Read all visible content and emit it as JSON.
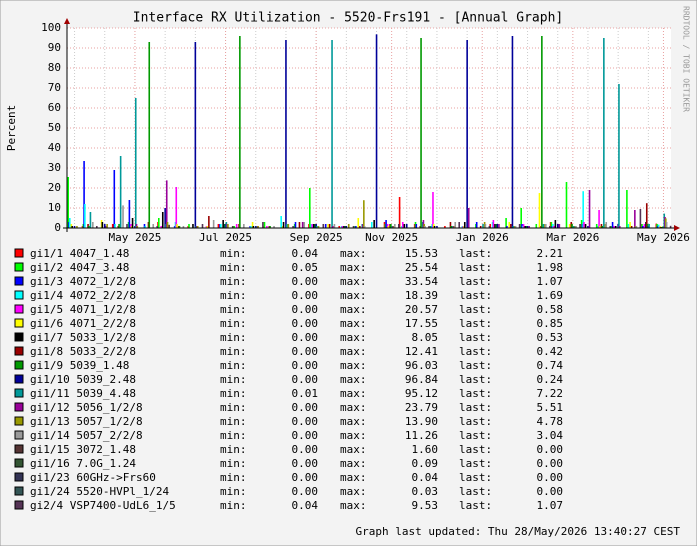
{
  "chart_data": {
    "type": "impulse",
    "title": "Interface RX Utilization - 5520-Frs191 - [Annual Graph]",
    "y_label": "Percent",
    "watermark": "RRDTOOL / TOBI OETIKER",
    "footer": "Graph last updated: Thu 28/May/2026 13:40:27 CEST",
    "stat_labels": {
      "min": "min:",
      "max": "max:",
      "last": "last:"
    },
    "ylim": [
      0,
      100
    ],
    "yticks": [
      0,
      10,
      20,
      30,
      40,
      50,
      60,
      70,
      80,
      90,
      100
    ],
    "grid": true,
    "categories": [
      null,
      null,
      null,
      null,
      "May 2025",
      null,
      null,
      null,
      null,
      null,
      "Jul 2025",
      null,
      null,
      null,
      null,
      null,
      "Sep 2025",
      null,
      null,
      null,
      null,
      "Nov 2025",
      null,
      null,
      null,
      null,
      null,
      "Jan 2026",
      null,
      null,
      null,
      null,
      null,
      "Mar 2026",
      null,
      null,
      null,
      null,
      null,
      "May 2026"
    ],
    "series": [
      {
        "name": "gi1/1 4047_1.48",
        "color": "#ff0000",
        "min": "0.04",
        "max": "15.53",
        "last": "2.21",
        "values": [
          0,
          1,
          0,
          2,
          0,
          0,
          3,
          0,
          1,
          0,
          2,
          0,
          0,
          1,
          0,
          0,
          2,
          0,
          1,
          0,
          0,
          3,
          15.5,
          2,
          0,
          1,
          0,
          0,
          2,
          0,
          1,
          0,
          3,
          0,
          2,
          0,
          1,
          0,
          2,
          2.2
        ]
      },
      {
        "name": "gi1/2 4047_3.48",
        "color": "#00ff00",
        "min": "0.05",
        "max": "25.54",
        "last": "1.98",
        "values": [
          25.5,
          2,
          0,
          0,
          3,
          0,
          5,
          0,
          2,
          0,
          0,
          1,
          0,
          3,
          0,
          2,
          20,
          0,
          0,
          1,
          0,
          2,
          0,
          3,
          1,
          0,
          0,
          2,
          0,
          5,
          10,
          2,
          3,
          23,
          4,
          2,
          1,
          19,
          2,
          2
        ]
      },
      {
        "name": "gi1/3 4072_1/2/8",
        "color": "#0000ff",
        "min": "0.00",
        "max": "33.54",
        "last": "1.07",
        "values": [
          3,
          33.5,
          0,
          29,
          14,
          2,
          0,
          1,
          0,
          0,
          2,
          0,
          1,
          0,
          0,
          3,
          0,
          2,
          0,
          1,
          0,
          4,
          0,
          2,
          1,
          0,
          0,
          3,
          0,
          1,
          2,
          0,
          1,
          0,
          2,
          0,
          3,
          0,
          1,
          1.1
        ]
      },
      {
        "name": "gi1/4 4072_2/2/8",
        "color": "#00ffff",
        "min": "0.00",
        "max": "18.39",
        "last": "1.69",
        "values": [
          5,
          12,
          0,
          2,
          0,
          1,
          0,
          3,
          0,
          0,
          2,
          0,
          1,
          0,
          6,
          0,
          2,
          0,
          1,
          0,
          3,
          0,
          1,
          0,
          2,
          0,
          1,
          0,
          3,
          0,
          1,
          0,
          2,
          0,
          18.4,
          1,
          0,
          2,
          0,
          1.7
        ]
      },
      {
        "name": "gi1/5 4071_1/2/8",
        "color": "#ff00ff",
        "min": "0.00",
        "max": "20.57",
        "last": "0.58",
        "values": [
          0,
          0,
          0,
          0,
          2,
          0,
          1,
          20.5,
          0,
          1,
          0,
          2,
          0,
          1,
          0,
          0,
          2,
          0,
          1,
          0,
          0,
          2,
          3,
          0,
          18,
          0,
          1,
          0,
          4,
          0,
          2,
          0,
          1,
          0,
          3,
          9,
          1,
          0,
          2,
          0.6
        ]
      },
      {
        "name": "gi1/6 4071_2/2/8",
        "color": "#ffff00",
        "min": "0.00",
        "max": "17.55",
        "last": "0.85",
        "values": [
          2,
          0,
          4,
          0,
          1,
          0,
          0,
          2,
          0,
          1,
          0,
          0,
          3,
          0,
          1,
          0,
          0,
          2,
          0,
          5,
          0,
          1,
          0,
          0,
          2,
          0,
          1,
          0,
          0,
          3,
          0,
          17.5,
          0,
          2,
          0,
          1,
          0,
          3,
          0,
          0.9
        ]
      },
      {
        "name": "gi1/7 5033_1/2/8",
        "color": "#000000",
        "min": "0.00",
        "max": "8.05",
        "last": "0.53",
        "values": [
          1,
          0,
          3,
          0,
          5,
          0,
          8,
          0,
          2,
          0,
          4,
          0,
          1,
          0,
          3,
          0,
          2,
          0,
          1,
          0,
          4,
          0,
          2,
          0,
          1,
          0,
          3,
          0,
          2,
          0,
          1,
          0,
          4,
          0,
          2,
          0,
          1,
          0,
          3,
          0.5
        ]
      },
      {
        "name": "gi1/8 5033_2/2/8",
        "color": "#990000",
        "min": "0.00",
        "max": "12.41",
        "last": "0.42",
        "values": [
          0,
          2,
          0,
          1,
          0,
          3,
          0,
          1,
          0,
          6,
          0,
          2,
          0,
          1,
          0,
          3,
          0,
          2,
          0,
          1,
          0,
          2,
          0,
          1,
          0,
          3,
          0,
          1,
          0,
          2,
          0,
          1,
          0,
          3,
          0,
          2,
          0,
          1,
          12.4,
          0.4
        ]
      },
      {
        "name": "gi1/9 5039_1.48",
        "color": "#009900",
        "min": "0.00",
        "max": "96.03",
        "last": "0.74",
        "values": [
          0,
          1,
          0,
          2,
          0,
          93,
          0,
          1,
          0,
          0,
          2,
          96,
          0,
          1,
          0,
          0,
          2,
          0,
          1,
          0,
          0,
          2,
          0,
          95,
          0,
          1,
          0,
          0,
          2,
          0,
          1,
          96,
          0,
          2,
          0,
          1,
          0,
          0,
          2,
          0.7
        ]
      },
      {
        "name": "gi1/10 5039_2.48",
        "color": "#000099",
        "min": "0.00",
        "max": "96.84",
        "last": "0.24",
        "values": [
          1,
          0,
          2,
          0,
          1,
          0,
          10,
          0,
          93,
          0,
          2,
          0,
          1,
          0,
          94,
          0,
          2,
          0,
          1,
          0,
          96.8,
          0,
          2,
          0,
          1,
          0,
          94,
          0,
          2,
          96,
          1,
          0,
          2,
          0,
          1,
          0,
          2,
          0,
          1,
          0.2
        ]
      },
      {
        "name": "gi1/11 5039_4.48",
        "color": "#009999",
        "min": "0.01",
        "max": "95.12",
        "last": "7.22",
        "values": [
          0,
          8,
          0,
          36,
          65,
          0,
          2,
          0,
          1,
          0,
          3,
          0,
          1,
          0,
          2,
          0,
          1,
          94,
          0,
          2,
          0,
          1,
          0,
          3,
          0,
          1,
          0,
          2,
          0,
          1,
          0,
          2,
          0,
          1,
          0,
          95,
          72,
          0,
          2,
          7.2
        ]
      },
      {
        "name": "gi1/12 5056_1/2/8",
        "color": "#990099",
        "min": "0.00",
        "max": "23.79",
        "last": "5.51",
        "values": [
          0,
          0,
          1,
          0,
          2,
          0,
          23.8,
          0,
          1,
          0,
          2,
          0,
          1,
          0,
          0,
          3,
          0,
          1,
          0,
          2,
          0,
          1,
          0,
          4,
          0,
          1,
          10,
          0,
          2,
          0,
          1,
          0,
          2,
          0,
          19,
          0,
          1,
          9,
          0,
          5.5
        ]
      },
      {
        "name": "gi1/13 5057_1/2/8",
        "color": "#999900",
        "min": "0.00",
        "max": "13.90",
        "last": "4.78",
        "values": [
          1,
          0,
          2,
          0,
          1,
          0,
          3,
          0,
          1,
          0,
          2,
          0,
          1,
          0,
          2,
          0,
          1,
          0,
          2,
          13.9,
          0,
          1,
          0,
          2,
          0,
          1,
          0,
          3,
          0,
          1,
          0,
          2,
          0,
          1,
          0,
          2,
          0,
          1,
          0,
          4.8
        ]
      },
      {
        "name": "gi1/14 5057_2/2/8",
        "color": "#999999",
        "min": "0.00",
        "max": "11.26",
        "last": "3.04",
        "values": [
          0,
          3,
          0,
          11.3,
          0,
          2,
          0,
          1,
          0,
          4,
          0,
          2,
          0,
          1,
          0,
          3,
          0,
          2,
          0,
          1,
          0,
          2,
          0,
          1,
          0,
          3,
          0,
          2,
          0,
          1,
          0,
          2,
          0,
          1,
          0,
          3,
          0,
          1,
          0,
          3
        ]
      },
      {
        "name": "gi1/15 3072_1.48",
        "color": "#553333",
        "min": "0.00",
        "max": "1.60",
        "last": "0.00",
        "values": [
          0,
          0,
          0,
          0,
          0,
          0,
          1.6,
          0,
          0,
          0,
          0,
          0,
          0,
          0,
          0,
          0,
          0,
          0,
          0,
          0,
          0,
          0,
          0,
          0,
          0,
          0,
          0,
          0,
          0,
          0,
          0,
          0,
          0,
          0,
          0,
          0,
          0,
          0,
          0,
          0
        ]
      },
      {
        "name": "gi1/16 7.0G_1.24",
        "color": "#335533",
        "min": "0.00",
        "max": "0.09",
        "last": "0.00",
        "values": [
          0,
          0,
          0,
          0,
          0,
          0,
          0,
          0,
          0,
          0,
          0,
          0,
          0,
          0,
          0,
          0,
          0,
          0,
          0,
          0,
          0,
          0,
          0,
          0,
          0,
          0,
          0,
          0,
          0,
          0,
          0,
          0,
          0,
          0,
          0,
          0,
          0,
          0,
          0,
          0
        ]
      },
      {
        "name": "gi1/23 60GHz->Frs60",
        "color": "#333355",
        "min": "0.00",
        "max": "0.04",
        "last": "0.00",
        "values": [
          0,
          0,
          0,
          0,
          0,
          0,
          0,
          0,
          0,
          0,
          0,
          0,
          0,
          0,
          0,
          0,
          0,
          0,
          0,
          0,
          0,
          0,
          0,
          0,
          0,
          0,
          0,
          0,
          0,
          0,
          0,
          0,
          0,
          0,
          0,
          0,
          0,
          0,
          0,
          0
        ]
      },
      {
        "name": "gi1/24 5520-HVPl_1/24",
        "color": "#335555",
        "min": "0.00",
        "max": "0.03",
        "last": "0.00",
        "values": [
          0,
          0,
          0,
          0,
          0,
          0,
          0,
          0,
          0,
          0,
          0,
          0,
          0,
          0,
          0,
          0,
          0,
          0,
          0,
          0,
          0,
          0,
          0,
          0,
          0,
          0,
          0,
          0,
          0,
          0,
          0,
          0,
          0,
          0,
          0,
          0,
          0,
          0,
          0,
          0
        ]
      },
      {
        "name": "gi2/4 VSP7400-UdL6_1/5",
        "color": "#553355",
        "min": "0.04",
        "max": "9.53",
        "last": "1.07",
        "values": [
          0,
          1,
          0,
          2,
          0,
          1,
          0,
          0,
          2,
          0,
          1,
          0,
          3,
          0,
          1,
          0,
          2,
          0,
          1,
          0,
          0,
          2,
          0,
          1,
          0,
          3,
          0,
          1,
          0,
          2,
          0,
          1,
          0,
          2,
          0,
          1,
          0,
          9.5,
          0,
          1.1
        ]
      }
    ]
  }
}
